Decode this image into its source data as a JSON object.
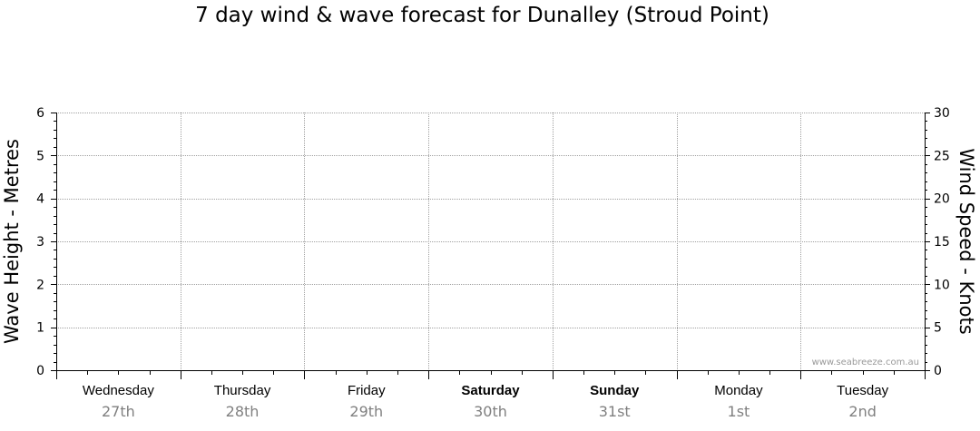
{
  "chart_data": {
    "type": "line",
    "title": "7 day wind & wave forecast for Dunalley (Stroud Point)",
    "left_axis": {
      "label": "Wave Height - Metres",
      "range": [
        0,
        6
      ],
      "ticks": [
        "0",
        "1",
        "2",
        "3",
        "4",
        "5",
        "6"
      ],
      "tick_values": [
        0,
        1,
        2,
        3,
        4,
        5,
        6
      ]
    },
    "right_axis": {
      "label": "Wind Speed - Knots",
      "range": [
        0,
        30
      ],
      "ticks": [
        "0",
        "5",
        "10",
        "15",
        "20",
        "25",
        "30"
      ],
      "tick_values": [
        0,
        5,
        10,
        15,
        20,
        25,
        30
      ]
    },
    "days": [
      {
        "name": "Wednesday",
        "date": "27th",
        "weekend": false
      },
      {
        "name": "Thursday",
        "date": "28th",
        "weekend": false
      },
      {
        "name": "Friday",
        "date": "29th",
        "weekend": false
      },
      {
        "name": "Saturday",
        "date": "30th",
        "weekend": true
      },
      {
        "name": "Sunday",
        "date": "31st",
        "weekend": true
      },
      {
        "name": "Monday",
        "date": "1st",
        "weekend": false
      },
      {
        "name": "Tuesday",
        "date": "2nd",
        "weekend": false
      }
    ],
    "series": [],
    "grid": true,
    "watermark": "www.seabreeze.com.au"
  }
}
